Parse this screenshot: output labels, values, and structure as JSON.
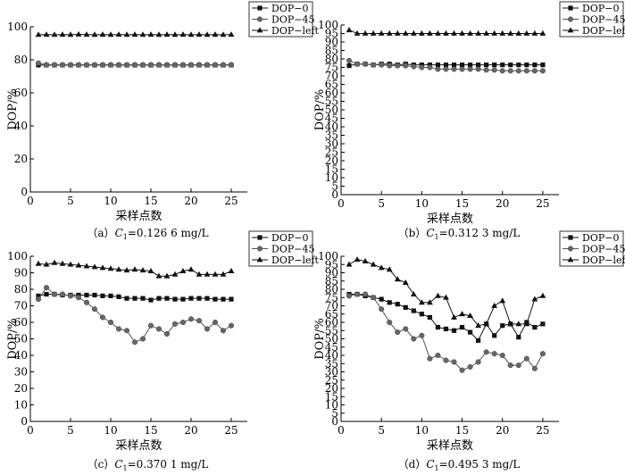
{
  "chart_data": [
    {
      "id": "a",
      "type": "line",
      "caption": {
        "prefix": "（a）",
        "var": "C",
        "sub": "1",
        "value": "=0.126 6 mg/L"
      },
      "xlabel": "采样点数",
      "ylabel": "DOP/%",
      "xlim": [
        0,
        27
      ],
      "ylim": [
        0,
        100
      ],
      "xticks": [
        0,
        5,
        10,
        15,
        20,
        25
      ],
      "yticks": [
        0,
        20,
        40,
        60,
        80,
        100
      ],
      "legend_position": "top-right",
      "x": [
        1,
        2,
        3,
        4,
        5,
        6,
        7,
        8,
        9,
        10,
        11,
        12,
        13,
        14,
        15,
        16,
        17,
        18,
        19,
        20,
        21,
        22,
        23,
        24,
        25
      ],
      "series": [
        {
          "name": "DOP−0",
          "marker": "square",
          "values": [
            76.8,
            76.8,
            76.8,
            76.8,
            76.8,
            76.8,
            76.8,
            76.8,
            76.8,
            76.8,
            76.8,
            76.8,
            76.8,
            76.8,
            76.8,
            76.8,
            76.8,
            76.8,
            76.8,
            76.8,
            76.8,
            76.8,
            76.8,
            76.8,
            76.8
          ]
        },
        {
          "name": "DOP−45",
          "marker": "circle",
          "values": [
            78,
            77,
            77,
            77,
            77,
            77,
            77,
            77,
            77,
            77,
            77,
            77,
            77,
            77,
            77,
            77,
            77,
            77,
            77,
            77,
            77,
            77,
            77,
            77,
            77
          ]
        },
        {
          "name": "DOP−left",
          "marker": "triangle",
          "values": [
            95.2,
            95.3,
            95.2,
            95.3,
            95.2,
            95.4,
            95.3,
            95.2,
            95.3,
            95.2,
            95.3,
            95.2,
            95.3,
            95.2,
            95.3,
            95.2,
            95.3,
            95.2,
            95.3,
            95.2,
            95.3,
            95.2,
            95.3,
            95.2,
            95.3
          ]
        }
      ]
    },
    {
      "id": "b",
      "type": "line",
      "caption": {
        "prefix": "（b）",
        "var": "C",
        "sub": "1",
        "value": "=0.312 3 mg/L"
      },
      "xlabel": "采样点数",
      "ylabel": "DOP/%",
      "xlim": [
        0,
        27
      ],
      "ylim": [
        0,
        100
      ],
      "xticks": [
        0,
        5,
        10,
        15,
        20,
        25
      ],
      "yticks": [
        0,
        5,
        10,
        15,
        20,
        25,
        30,
        35,
        40,
        45,
        50,
        55,
        60,
        65,
        70,
        75,
        80,
        85,
        90,
        95,
        100
      ],
      "legend_position": "top-right",
      "x": [
        1,
        2,
        3,
        4,
        5,
        6,
        7,
        8,
        9,
        10,
        11,
        12,
        13,
        14,
        15,
        16,
        17,
        18,
        19,
        20,
        21,
        22,
        23,
        24,
        25
      ],
      "series": [
        {
          "name": "DOP−0",
          "marker": "square",
          "values": [
            76,
            77,
            77,
            76.5,
            77,
            77,
            76.5,
            77,
            76.5,
            76.5,
            76.5,
            76.5,
            76.5,
            76.5,
            76.5,
            76.5,
            76.5,
            76.5,
            76.5,
            76.5,
            76.5,
            76.5,
            76.5,
            76.5,
            76.5
          ]
        },
        {
          "name": "DOP−45",
          "marker": "circle",
          "values": [
            79,
            77,
            77,
            76.5,
            76.5,
            76,
            76,
            76,
            75.5,
            75,
            75,
            74,
            74,
            74,
            74,
            74,
            74,
            73.5,
            73.5,
            73,
            73,
            73,
            73,
            73,
            73
          ]
        },
        {
          "name": "DOP−left",
          "marker": "triangle",
          "values": [
            97,
            95,
            95,
            95,
            95,
            95,
            95,
            95,
            95,
            95,
            95,
            95,
            95,
            95,
            95,
            95,
            95,
            95,
            95,
            95,
            95,
            95,
            95,
            95,
            95
          ]
        }
      ]
    },
    {
      "id": "c",
      "type": "line",
      "caption": {
        "prefix": "（c）",
        "var": "C",
        "sub": "1",
        "value": "=0.370 1 mg/L"
      },
      "xlabel": "采样点数",
      "ylabel": "DOP/%",
      "xlim": [
        0,
        27
      ],
      "ylim": [
        0,
        100
      ],
      "xticks": [
        0,
        5,
        10,
        15,
        20,
        25
      ],
      "yticks": [
        0,
        10,
        20,
        30,
        40,
        50,
        60,
        70,
        80,
        90,
        100
      ],
      "legend_position": "top-right",
      "x": [
        1,
        2,
        3,
        4,
        5,
        6,
        7,
        8,
        9,
        10,
        11,
        12,
        13,
        14,
        15,
        16,
        17,
        18,
        19,
        20,
        21,
        22,
        23,
        24,
        25
      ],
      "series": [
        {
          "name": "DOP−0",
          "marker": "square",
          "values": [
            76,
            77,
            77,
            76.5,
            76.5,
            76.5,
            76.5,
            76.5,
            76,
            76,
            75.5,
            74.5,
            74.5,
            74.5,
            73.5,
            74.5,
            74.5,
            74,
            74,
            74.5,
            74.5,
            74.5,
            74,
            74,
            74
          ]
        },
        {
          "name": "DOP−45",
          "marker": "circle",
          "values": [
            74,
            81,
            77,
            77,
            76,
            75,
            72,
            68,
            63,
            60,
            56,
            55,
            48,
            50,
            58,
            56,
            53,
            59,
            60,
            62,
            61,
            56,
            60,
            55,
            58
          ]
        },
        {
          "name": "DOP−left",
          "marker": "triangle",
          "values": [
            95.5,
            95,
            96,
            95.5,
            95,
            94.5,
            94,
            93.5,
            93,
            92.5,
            92,
            91.5,
            92,
            91.5,
            91,
            88,
            88,
            89,
            91,
            92,
            89,
            89,
            89,
            89,
            91
          ]
        }
      ]
    },
    {
      "id": "d",
      "type": "line",
      "caption": {
        "prefix": "（d）",
        "var": "C",
        "sub": "1",
        "value": "=0.495 3 mg/L"
      },
      "xlabel": "采样点数",
      "ylabel": "DOP/%",
      "xlim": [
        0,
        27
      ],
      "ylim": [
        0,
        100
      ],
      "xticks": [
        0,
        5,
        10,
        15,
        20,
        25
      ],
      "yticks": [
        0,
        5,
        10,
        15,
        20,
        25,
        30,
        35,
        40,
        45,
        50,
        55,
        60,
        65,
        70,
        75,
        80,
        85,
        90,
        95,
        100
      ],
      "legend_position": "top-right",
      "x": [
        1,
        2,
        3,
        4,
        5,
        6,
        7,
        8,
        9,
        10,
        11,
        12,
        13,
        14,
        15,
        16,
        17,
        18,
        19,
        20,
        21,
        22,
        23,
        24,
        25
      ],
      "series": [
        {
          "name": "DOP−0",
          "marker": "square",
          "values": [
            77,
            77,
            76,
            75,
            74,
            72,
            71,
            69,
            67,
            65,
            63,
            57,
            56,
            55,
            57,
            54,
            49,
            59,
            52,
            58,
            59,
            51,
            60,
            57,
            59
          ]
        },
        {
          "name": "DOP−45",
          "marker": "circle",
          "values": [
            76,
            77,
            77,
            75,
            68,
            60,
            54,
            56,
            50,
            52,
            38,
            40,
            37,
            36,
            31,
            33,
            36,
            42,
            41,
            40,
            34,
            34,
            38,
            32,
            41
          ]
        },
        {
          "name": "DOP−left",
          "marker": "triangle",
          "values": [
            95,
            98,
            97,
            95,
            93,
            92,
            86,
            84,
            77,
            72,
            72,
            76,
            75,
            63,
            65,
            64,
            58,
            59,
            70,
            73,
            59,
            59,
            59,
            74,
            76
          ]
        }
      ]
    }
  ]
}
